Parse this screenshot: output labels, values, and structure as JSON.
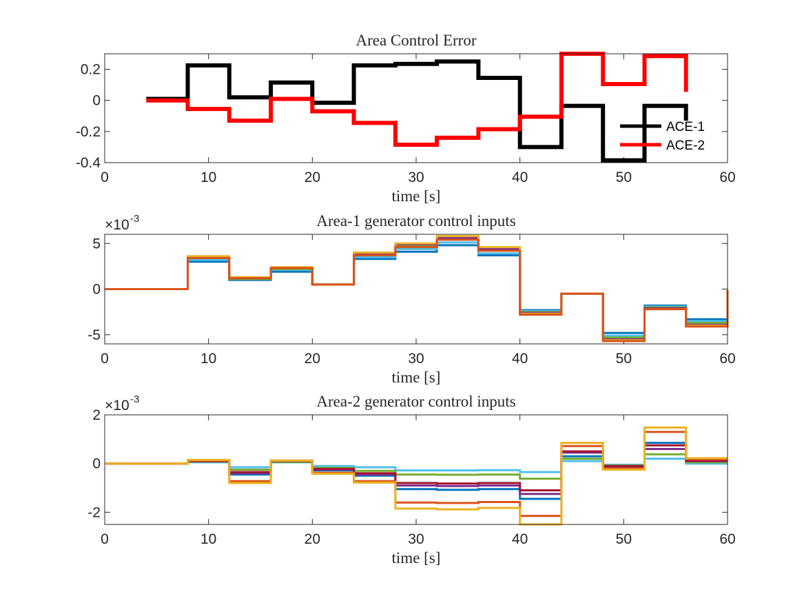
{
  "chart_data": [
    {
      "type": "line",
      "title": "Area Control Error",
      "xlabel": "time [s]",
      "ylabel": "",
      "xlim": [
        0,
        60
      ],
      "ylim": [
        -0.4,
        0.3
      ],
      "xticks": [
        "0",
        "10",
        "20",
        "30",
        "40",
        "50",
        "60"
      ],
      "yticks": [
        "-0.4",
        "-0.2",
        "0",
        "0.2"
      ],
      "ytick_values": [
        -0.4,
        -0.2,
        0,
        0.2
      ],
      "exponent": "",
      "legend": "bottom-right",
      "line_width": 6,
      "series": [
        {
          "name": "ACE-1",
          "color": "#000000",
          "x": [
            4,
            8,
            8,
            12,
            12,
            16,
            16,
            20,
            20,
            24,
            24,
            28,
            28,
            32,
            32,
            36,
            36,
            40,
            40,
            44,
            44,
            48,
            48,
            52,
            52,
            56,
            56
          ],
          "y": [
            0.01,
            0.01,
            0.225,
            0.225,
            0.02,
            0.02,
            0.115,
            0.115,
            -0.015,
            -0.015,
            0.225,
            0.225,
            0.235,
            0.235,
            0.25,
            0.25,
            0.145,
            0.145,
            -0.3,
            -0.3,
            -0.035,
            -0.035,
            -0.385,
            -0.385,
            -0.035,
            -0.035,
            -0.13
          ]
        },
        {
          "name": "ACE-2",
          "color": "#ff0000",
          "x": [
            4,
            8,
            8,
            12,
            12,
            16,
            16,
            20,
            20,
            24,
            24,
            28,
            28,
            32,
            32,
            36,
            36,
            40,
            40,
            44,
            44,
            48,
            48,
            52,
            52,
            56,
            56
          ],
          "y": [
            0.0,
            0.0,
            -0.055,
            -0.055,
            -0.13,
            -0.13,
            0.01,
            0.01,
            -0.07,
            -0.07,
            -0.145,
            -0.145,
            -0.285,
            -0.285,
            -0.24,
            -0.24,
            -0.185,
            -0.185,
            -0.105,
            -0.105,
            0.305,
            0.305,
            0.105,
            0.105,
            0.285,
            0.285,
            0.055
          ]
        }
      ]
    },
    {
      "type": "line",
      "title": "Area-1 generator control inputs",
      "xlabel": "time [s]",
      "ylabel": "",
      "xlim": [
        0,
        60
      ],
      "ylim": [
        -6,
        6
      ],
      "xticks": [
        "0",
        "10",
        "20",
        "30",
        "40",
        "50",
        "60"
      ],
      "yticks": [
        "-5",
        "0",
        "5"
      ],
      "ytick_values": [
        -5,
        0,
        5
      ],
      "exponent": "-3",
      "line_width": 3,
      "x": [
        0,
        8,
        8,
        12,
        12,
        16,
        16,
        20,
        20,
        24,
        24,
        28,
        28,
        32,
        32,
        36,
        36,
        40,
        40,
        44,
        44,
        48,
        48,
        52,
        52,
        56,
        56,
        60,
        60
      ],
      "series": [
        {
          "color": "#0072bd",
          "y": [
            0,
            0,
            3.0,
            3.0,
            1.0,
            1.0,
            1.9,
            1.9,
            0.5,
            0.5,
            3.3,
            3.3,
            4.1,
            4.1,
            4.8,
            4.8,
            3.7,
            3.7,
            -2.3,
            -2.3,
            -0.5,
            -0.5,
            -4.8,
            -4.8,
            -1.8,
            -1.8,
            -3.3,
            -3.3,
            -0.2
          ]
        },
        {
          "color": "#4dbeee",
          "y": [
            0,
            0,
            3.2,
            3.2,
            1.1,
            1.1,
            2.1,
            2.1,
            0.5,
            0.5,
            3.5,
            3.5,
            4.4,
            4.4,
            5.1,
            5.1,
            3.9,
            3.9,
            -2.4,
            -2.4,
            -0.5,
            -0.5,
            -5.1,
            -5.1,
            -1.9,
            -1.9,
            -3.5,
            -3.5,
            -0.2
          ]
        },
        {
          "color": "#77ac30",
          "y": [
            0,
            0,
            3.4,
            3.4,
            1.1,
            1.1,
            2.2,
            2.2,
            0.5,
            0.5,
            3.8,
            3.8,
            4.7,
            4.7,
            5.5,
            5.5,
            4.3,
            4.3,
            -2.5,
            -2.5,
            -0.5,
            -0.5,
            -5.3,
            -5.3,
            -2.0,
            -2.0,
            -3.7,
            -3.7,
            -0.2
          ]
        },
        {
          "color": "#7e2f8e",
          "y": [
            0,
            0,
            3.5,
            3.5,
            1.2,
            1.2,
            2.3,
            2.3,
            0.5,
            0.5,
            3.9,
            3.9,
            4.9,
            4.9,
            5.6,
            5.6,
            4.4,
            4.4,
            -2.6,
            -2.6,
            -0.5,
            -0.5,
            -5.5,
            -5.5,
            -2.1,
            -2.1,
            -3.9,
            -3.9,
            -0.2
          ]
        },
        {
          "color": "#edb120",
          "y": [
            0,
            0,
            3.6,
            3.6,
            1.3,
            1.3,
            2.4,
            2.4,
            0.5,
            0.5,
            4.0,
            4.0,
            5.0,
            5.0,
            5.8,
            5.8,
            4.6,
            4.6,
            -2.7,
            -2.7,
            -0.5,
            -0.5,
            -5.6,
            -5.6,
            -2.2,
            -2.2,
            -4.0,
            -4.0,
            -0.2
          ]
        },
        {
          "color": "#d95319",
          "y": [
            0,
            0,
            3.4,
            3.4,
            1.2,
            1.2,
            2.3,
            2.3,
            0.5,
            0.5,
            3.7,
            3.7,
            4.6,
            4.6,
            5.4,
            5.4,
            4.2,
            4.2,
            -2.8,
            -2.8,
            -0.5,
            -0.5,
            -5.7,
            -5.7,
            -2.2,
            -2.2,
            -4.1,
            -4.1,
            -0.1
          ]
        }
      ]
    },
    {
      "type": "line",
      "title": "Area-2 generator control inputs",
      "xlabel": "time [s]",
      "ylabel": "",
      "xlim": [
        0,
        60
      ],
      "ylim": [
        -2.5,
        2
      ],
      "xticks": [
        "0",
        "10",
        "20",
        "30",
        "40",
        "50",
        "60"
      ],
      "yticks": [
        "-2",
        "0",
        "2"
      ],
      "ytick_values": [
        -2,
        0,
        2
      ],
      "exponent": "-3",
      "line_width": 3,
      "x": [
        0,
        8,
        8,
        12,
        12,
        16,
        16,
        20,
        20,
        24,
        24,
        28,
        28,
        32,
        32,
        36,
        36,
        40,
        40,
        44,
        44,
        48,
        48,
        52,
        52,
        56,
        56,
        60
      ],
      "series": [
        {
          "color": "#4dbeee",
          "y": [
            0,
            0,
            0.05,
            0.05,
            -0.15,
            -0.15,
            0.05,
            0.05,
            -0.1,
            -0.1,
            -0.15,
            -0.15,
            -0.28,
            -0.28,
            -0.28,
            -0.28,
            -0.27,
            -0.27,
            -0.35,
            -0.35,
            0.1,
            0.1,
            -0.05,
            -0.05,
            0.2,
            0.2,
            0.0,
            0.0
          ]
        },
        {
          "color": "#77ac30",
          "y": [
            0,
            0,
            0.08,
            0.08,
            -0.25,
            -0.25,
            0.06,
            0.06,
            -0.18,
            -0.18,
            -0.3,
            -0.3,
            -0.45,
            -0.45,
            -0.46,
            -0.46,
            -0.45,
            -0.45,
            -0.62,
            -0.62,
            0.2,
            0.2,
            -0.08,
            -0.08,
            0.38,
            0.38,
            0.05,
            0.05
          ]
        },
        {
          "color": "#0072bd",
          "y": [
            0,
            0,
            0.1,
            0.1,
            -0.45,
            -0.45,
            0.1,
            0.1,
            -0.28,
            -0.28,
            -0.5,
            -0.5,
            -1.05,
            -1.05,
            -1.08,
            -1.08,
            -1.05,
            -1.05,
            -1.45,
            -1.45,
            0.3,
            0.3,
            -0.15,
            -0.15,
            0.85,
            0.85,
            0.12,
            0.12
          ]
        },
        {
          "color": "#7e2f8e",
          "y": [
            0,
            0,
            0.1,
            0.1,
            -0.4,
            -0.4,
            0.1,
            0.1,
            -0.25,
            -0.25,
            -0.45,
            -0.45,
            -0.9,
            -0.9,
            -0.92,
            -0.92,
            -0.9,
            -0.9,
            -1.25,
            -1.25,
            0.45,
            0.45,
            -0.12,
            -0.12,
            0.6,
            0.6,
            0.1,
            0.1
          ]
        },
        {
          "color": "#a2142f",
          "y": [
            0,
            0,
            0.1,
            0.1,
            -0.35,
            -0.35,
            0.12,
            0.12,
            -0.22,
            -0.22,
            -0.4,
            -0.4,
            -0.8,
            -0.8,
            -0.82,
            -0.82,
            -0.8,
            -0.8,
            -1.1,
            -1.1,
            0.5,
            0.5,
            -0.1,
            -0.1,
            0.75,
            0.75,
            0.12,
            0.12
          ]
        },
        {
          "color": "#d95319",
          "y": [
            0,
            0,
            0.12,
            0.12,
            -0.72,
            -0.72,
            0.12,
            0.12,
            -0.38,
            -0.38,
            -0.72,
            -0.72,
            -1.6,
            -1.6,
            -1.62,
            -1.62,
            -1.58,
            -1.58,
            -2.15,
            -2.15,
            0.72,
            0.72,
            -0.2,
            -0.2,
            1.3,
            1.3,
            0.18,
            0.18
          ]
        },
        {
          "color": "#edb120",
          "y": [
            0,
            0,
            0.15,
            0.15,
            -0.8,
            -0.8,
            0.12,
            0.12,
            -0.42,
            -0.42,
            -0.78,
            -0.78,
            -1.85,
            -1.85,
            -1.88,
            -1.88,
            -1.82,
            -1.82,
            -2.5,
            -2.5,
            0.85,
            0.85,
            -0.25,
            -0.25,
            1.48,
            1.48,
            0.22,
            0.22
          ]
        }
      ]
    }
  ]
}
